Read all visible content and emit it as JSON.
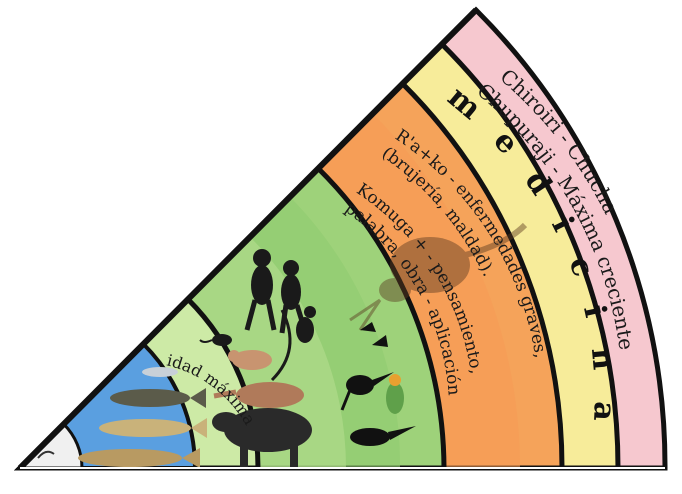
{
  "bands": {
    "outer": {
      "line1": "Chiroiri - Chucha",
      "line2": "Chupuraji - Máxima creciente",
      "color": "#f6c8cf"
    },
    "medicina": {
      "label": "m e d i c i n a",
      "color": "#f7ec9a"
    },
    "orange": {
      "block1_line1": "R'a+ko - enfermedades graves,",
      "block1_line2": "(brujería, maldad).",
      "block2_line1": "Komuga + - pensamiento,",
      "block2_line2": "palabra, obra - aplicación",
      "color": "#f5a35a"
    },
    "green": {
      "color": "#9ed27a"
    },
    "blue": {
      "text": "idad máxima",
      "color": "#5a9fe0"
    }
  },
  "icons": [
    "monkey-icon",
    "bird-icon",
    "tapir-icon",
    "anteater-icon",
    "fish-icon",
    "toucan-icon",
    "parrot-icon",
    "opossum-icon"
  ]
}
